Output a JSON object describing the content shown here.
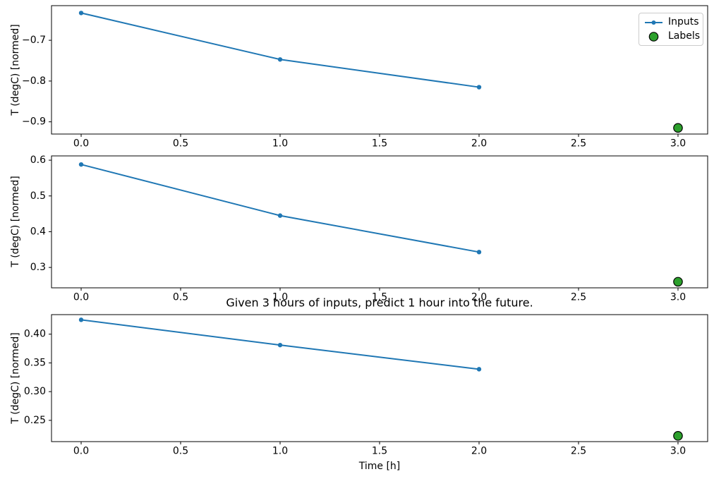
{
  "figure": {
    "title": "Given 3 hours of inputs, predict 1 hour into the future.",
    "xlabel": "Time [h]",
    "legend": {
      "inputs_label": "Inputs",
      "labels_label": "Labels"
    },
    "colors": {
      "inputs": "#1f77b4",
      "labels_fill": "#2ca02c",
      "labels_edge": "#000000",
      "axes": "#000000",
      "legend_border": "#cccccc"
    }
  },
  "chart_data": [
    {
      "type": "line",
      "title": "",
      "xlabel": "",
      "ylabel": "T (degC) [normed]",
      "x": [
        0.0,
        1.0,
        2.0
      ],
      "series": [
        {
          "name": "Inputs",
          "values": [
            -0.633,
            -0.747,
            -0.815
          ]
        }
      ],
      "label_point": {
        "name": "Labels",
        "x": 3.0,
        "y": -0.915
      },
      "xlim": [
        -0.149,
        3.149
      ],
      "ylim": [
        -0.93,
        -0.615
      ],
      "xtick_values": [
        0.0,
        0.5,
        1.0,
        1.5,
        2.0,
        2.5,
        3.0
      ],
      "xtick_labels": [
        "0.0",
        "0.5",
        "1.0",
        "1.5",
        "2.0",
        "2.5",
        "3.0"
      ],
      "ytick_values": [
        -0.7,
        -0.8,
        -0.9
      ],
      "ytick_labels": [
        "−0.7",
        "−0.8",
        "−0.9"
      ],
      "grid": false,
      "legend_position": "upper right"
    },
    {
      "type": "line",
      "title": "",
      "xlabel": "",
      "ylabel": "T (degC) [normed]",
      "x": [
        0.0,
        1.0,
        2.0
      ],
      "series": [
        {
          "name": "Inputs",
          "values": [
            0.588,
            0.445,
            0.343
          ]
        }
      ],
      "label_point": {
        "name": "Labels",
        "x": 3.0,
        "y": 0.26
      },
      "xlim": [
        -0.149,
        3.149
      ],
      "ylim": [
        0.243,
        0.612
      ],
      "xtick_values": [
        0.0,
        0.5,
        1.0,
        1.5,
        2.0,
        2.5,
        3.0
      ],
      "xtick_labels": [
        "0.0",
        "0.5",
        "1.0",
        "1.5",
        "2.0",
        "2.5",
        "3.0"
      ],
      "ytick_values": [
        0.6,
        0.5,
        0.4,
        0.3
      ],
      "ytick_labels": [
        "0.6",
        "0.5",
        "0.4",
        "0.3"
      ],
      "grid": false
    },
    {
      "type": "line",
      "title": "Given 3 hours of inputs, predict 1 hour into the future.",
      "xlabel": "Time [h]",
      "ylabel": "T (degC) [normed]",
      "x": [
        0.0,
        1.0,
        2.0
      ],
      "series": [
        {
          "name": "Inputs",
          "values": [
            0.425,
            0.381,
            0.339
          ]
        }
      ],
      "label_point": {
        "name": "Labels",
        "x": 3.0,
        "y": 0.223
      },
      "xlim": [
        -0.149,
        3.149
      ],
      "ylim": [
        0.213,
        0.434
      ],
      "xtick_values": [
        0.0,
        0.5,
        1.0,
        1.5,
        2.0,
        2.5,
        3.0
      ],
      "xtick_labels": [
        "0.0",
        "0.5",
        "1.0",
        "1.5",
        "2.0",
        "2.5",
        "3.0"
      ],
      "ytick_values": [
        0.4,
        0.35,
        0.3,
        0.25
      ],
      "ytick_labels": [
        "0.40",
        "0.35",
        "0.30",
        "0.25"
      ],
      "grid": false
    }
  ]
}
